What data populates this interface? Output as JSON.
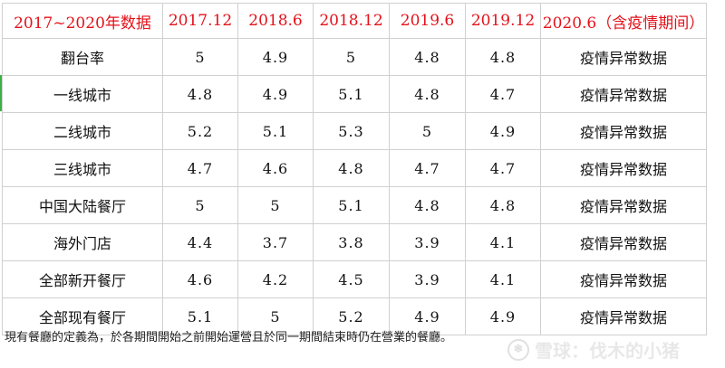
{
  "table": {
    "headers": [
      "2017~2020年数据",
      "2017.12",
      "2018.6",
      "2018.12",
      "2019.6",
      "2019.12",
      "2020.6（含疫情期间）"
    ],
    "rows": [
      [
        "翻台率",
        "5",
        "4.9",
        "5",
        "4.8",
        "4.8",
        "疫情异常数据"
      ],
      [
        "一线城市",
        "4.8",
        "4.9",
        "5.1",
        "4.8",
        "4.7",
        "疫情异常数据"
      ],
      [
        "二线城市",
        "5.2",
        "5.1",
        "5.3",
        "5",
        "4.9",
        "疫情异常数据"
      ],
      [
        "三线城市",
        "4.7",
        "4.6",
        "4.8",
        "4.7",
        "4.7",
        "疫情异常数据"
      ],
      [
        "中国大陆餐厅",
        "5",
        "5",
        "5.1",
        "4.8",
        "4.8",
        "疫情异常数据"
      ],
      [
        "海外门店",
        "4.4",
        "3.7",
        "3.8",
        "3.9",
        "4.1",
        "疫情异常数据"
      ],
      [
        "全部新开餐厅",
        "4.6",
        "4.2",
        "4.5",
        "3.9",
        "4.1",
        "疫情异常数据"
      ],
      [
        "全部现有餐厅",
        "5.1",
        "5",
        "5.2",
        "4.9",
        "4.9",
        "疫情异常数据"
      ]
    ]
  },
  "footnote": "現有餐廳的定義為，於各期間開始之前開始運營且於同一期間結束時仍在營業的餐廳。",
  "watermark": {
    "text": "雪球：伐木的小猪",
    "icon": "snowball-logo-icon"
  },
  "colors": {
    "header_text": "#e3121a",
    "gridline": "#d0d0d0",
    "accent": "#3cb043"
  }
}
